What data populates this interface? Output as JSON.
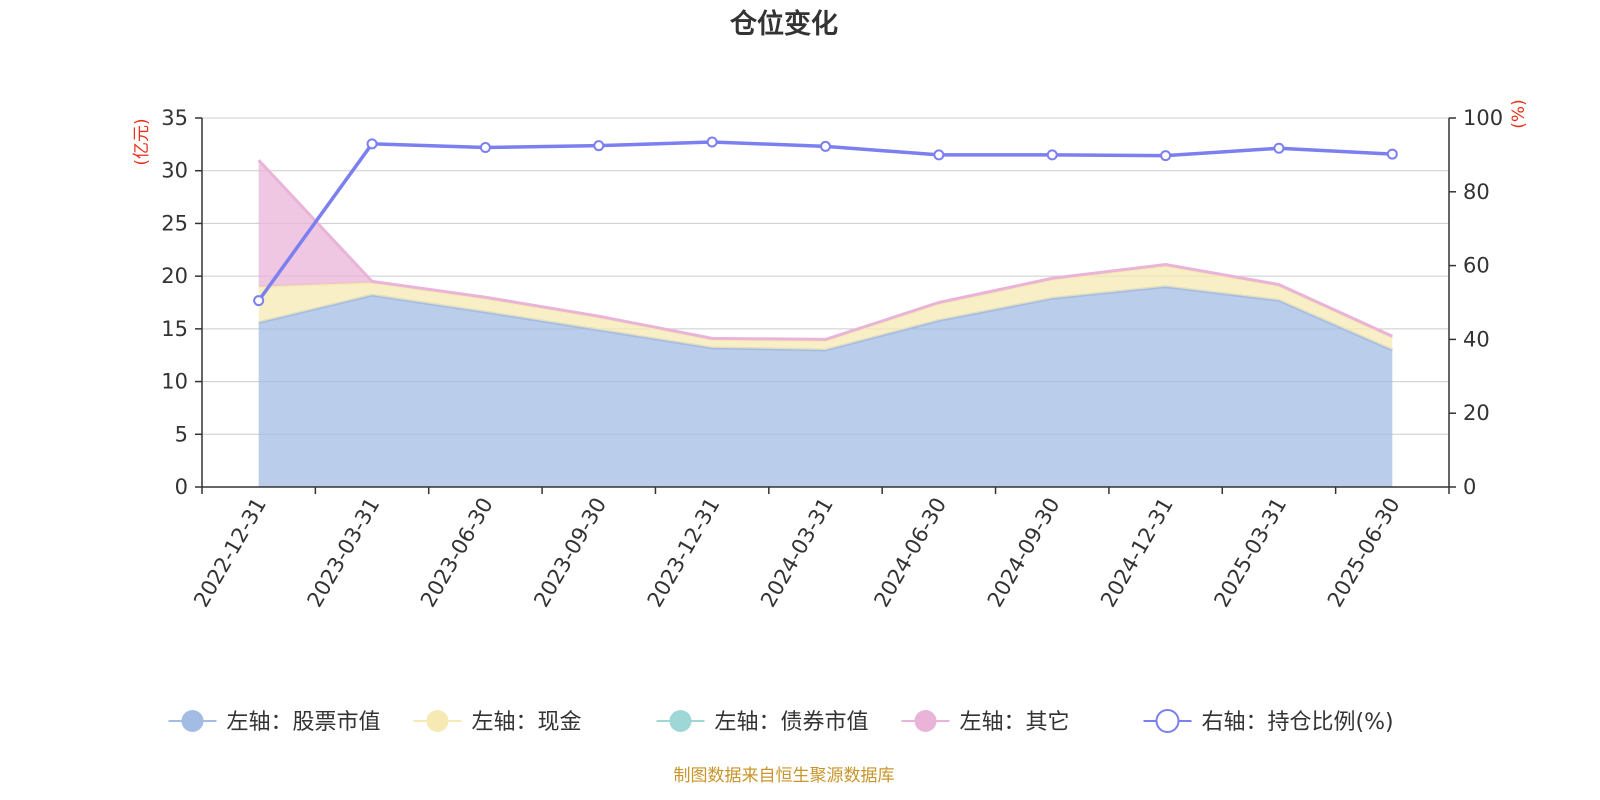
{
  "chart_data": {
    "type": "area",
    "title": "仓位变化",
    "source": "制图数据来自恒生聚源数据库",
    "categories": [
      "2022-12-31",
      "2023-03-31",
      "2023-06-30",
      "2023-09-30",
      "2023-12-31",
      "2024-03-31",
      "2024-06-30",
      "2024-09-30",
      "2024-12-31",
      "2025-03-31",
      "2025-06-30"
    ],
    "left_axis": {
      "unit": "(亿元)",
      "ylim": [
        0,
        35
      ],
      "ticks": [
        "0",
        "5",
        "10",
        "15",
        "20",
        "25",
        "30",
        "35"
      ]
    },
    "right_axis": {
      "unit": "(%)",
      "ylim": [
        0,
        100
      ],
      "ticks": [
        "0",
        "20",
        "40",
        "60",
        "80",
        "100"
      ]
    },
    "stacked_series": [
      {
        "name": "左轴：股票市值",
        "color": "#a3bce4",
        "values": [
          15.6,
          18.2,
          16.6,
          14.9,
          13.2,
          13.0,
          15.8,
          17.9,
          19.0,
          17.7,
          13.0
        ]
      },
      {
        "name": "左轴：现金",
        "color": "#f7e9b3",
        "values": [
          3.4,
          1.2,
          1.3,
          1.2,
          0.8,
          0.9,
          1.6,
          1.8,
          2.0,
          1.4,
          1.2
        ]
      },
      {
        "name": "左轴：债券市值",
        "color": "#9fd6d6",
        "values": [
          0,
          0,
          0,
          0,
          0,
          0,
          0,
          0,
          0,
          0,
          0
        ]
      },
      {
        "name": "左轴：其它",
        "color": "#e9b4d8",
        "values": [
          12.0,
          0.1,
          0.1,
          0.1,
          0.1,
          0.1,
          0.1,
          0.1,
          0.1,
          0.1,
          0.1
        ]
      }
    ],
    "line_series": {
      "name": "右轴：持仓比例(%)",
      "color": "#7b7fef",
      "values": [
        50.5,
        93.0,
        92.0,
        92.5,
        93.5,
        92.3,
        90.0,
        90.0,
        89.8,
        91.8,
        90.2
      ]
    },
    "grid": true,
    "legend_position": "bottom"
  }
}
